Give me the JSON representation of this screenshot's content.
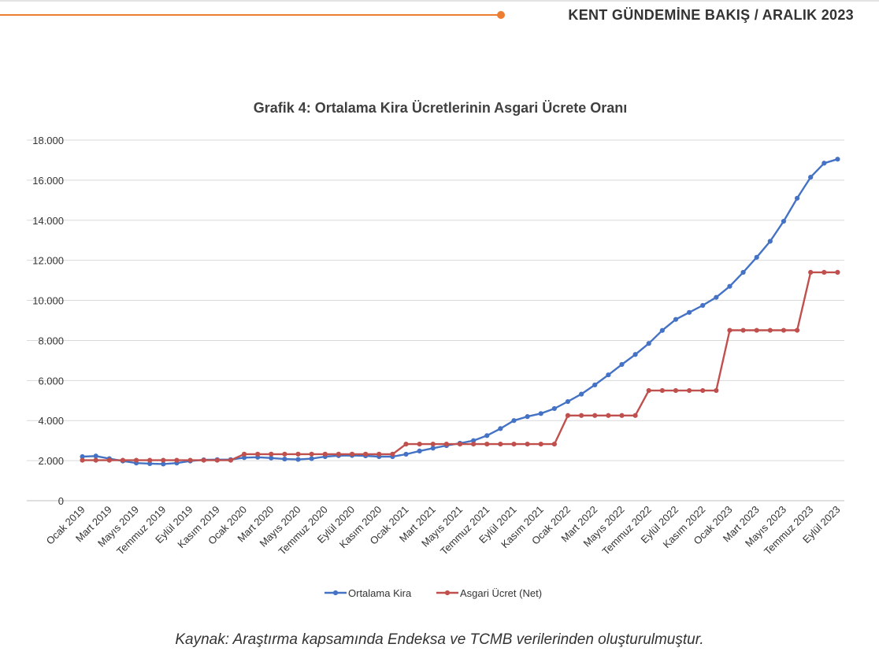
{
  "header": {
    "title": "KENT GÜNDEMİNE BAKIŞ / ARALIK 2023",
    "accent_color": "#ed7d31"
  },
  "caption": "Kaynak: Araştırma kapsamında Endeksa ve TCMB verilerinden oluşturulmuştur.",
  "chart_data": {
    "type": "line",
    "title": "Grafik 4: Ortalama Kira Ücretlerinin Asgari Ücrete Oranı",
    "xlabel": "",
    "ylabel": "",
    "ylim": [
      0,
      18000
    ],
    "y_ticks": [
      0,
      2000,
      4000,
      6000,
      8000,
      10000,
      12000,
      14000,
      16000,
      18000
    ],
    "y_tick_labels": [
      "0",
      "2.000",
      "4.000",
      "6.000",
      "8.000",
      "10.000",
      "12.000",
      "14.000",
      "16.000",
      "18.000"
    ],
    "grid": true,
    "legend_position": "bottom",
    "x": [
      "Ocak 2019",
      "Şubat 2019",
      "Mart 2019",
      "Nisan 2019",
      "Mayıs 2019",
      "Haziran 2019",
      "Temmuz 2019",
      "Ağustos 2019",
      "Eylül 2019",
      "Ekim 2019",
      "Kasım 2019",
      "Aralık 2019",
      "Ocak 2020",
      "Şubat 2020",
      "Mart 2020",
      "Nisan 2020",
      "Mayıs 2020",
      "Haziran 2020",
      "Temmuz 2020",
      "Ağustos 2020",
      "Eylül 2020",
      "Ekim 2020",
      "Kasım 2020",
      "Aralık 2020",
      "Ocak 2021",
      "Şubat 2021",
      "Mart 2021",
      "Nisan 2021",
      "Mayıs 2021",
      "Haziran 2021",
      "Temmuz 2021",
      "Ağustos 2021",
      "Eylül 2021",
      "Ekim 2021",
      "Kasım 2021",
      "Aralık 2021",
      "Ocak 2022",
      "Şubat 2022",
      "Mart 2022",
      "Nisan 2022",
      "Mayıs 2022",
      "Haziran 2022",
      "Temmuz 2022",
      "Ağustos 2022",
      "Eylül 2022",
      "Ekim 2022",
      "Kasım 2022",
      "Aralık 2022",
      "Ocak 2023",
      "Şubat 2023",
      "Mart 2023",
      "Nisan 2023",
      "Mayıs 2023",
      "Haziran 2023",
      "Temmuz 2023",
      "Ağustos 2023",
      "Eylül 2023"
    ],
    "x_tick_labels": [
      "Ocak 2019",
      "Mart 2019",
      "Mayıs 2019",
      "Temmuz 2019",
      "Eylül 2019",
      "Kasım 2019",
      "Ocak 2020",
      "Mart 2020",
      "Mayıs 2020",
      "Temmuz 2020",
      "Eylül 2020",
      "Kasım 2020",
      "Ocak 2021",
      "Mart 2021",
      "Mayıs 2021",
      "Temmuz 2021",
      "Eylül 2021",
      "Kasım 2021",
      "Ocak 2022",
      "Mart 2022",
      "Mayıs 2022",
      "Temmuz 2022",
      "Eylül 2022",
      "Kasım 2022",
      "Ocak 2023",
      "Mart 2023",
      "Mayıs 2023",
      "Temmuz 2023",
      "Eylül 2023"
    ],
    "series": [
      {
        "name": "Ortalama Kira",
        "color": "#4472c4",
        "values": [
          2200,
          2230,
          2100,
          1980,
          1880,
          1850,
          1830,
          1880,
          1980,
          2040,
          2050,
          2050,
          2150,
          2170,
          2130,
          2080,
          2060,
          2100,
          2200,
          2250,
          2260,
          2240,
          2200,
          2200,
          2320,
          2480,
          2620,
          2750,
          2870,
          3000,
          3250,
          3600,
          4000,
          4200,
          4350,
          4600,
          4950,
          5320,
          5780,
          6280,
          6800,
          7300,
          7850,
          8500,
          9050,
          9400,
          9750,
          10150,
          10700,
          11400,
          12150,
          12950,
          13950,
          15100,
          16150,
          16850,
          17050
        ]
      },
      {
        "name": "Asgari Ücret (Net)",
        "color": "#c0504d",
        "values": [
          2020,
          2020,
          2020,
          2020,
          2020,
          2020,
          2020,
          2020,
          2020,
          2020,
          2020,
          2020,
          2324,
          2324,
          2324,
          2324,
          2324,
          2324,
          2324,
          2324,
          2324,
          2324,
          2324,
          2324,
          2826,
          2826,
          2826,
          2826,
          2826,
          2826,
          2826,
          2826,
          2826,
          2826,
          2826,
          2826,
          4253,
          4253,
          4253,
          4253,
          4253,
          4253,
          5500,
          5500,
          5500,
          5500,
          5500,
          5500,
          8507,
          8507,
          8507,
          8507,
          8507,
          8507,
          11402,
          11402,
          11402
        ]
      }
    ]
  }
}
